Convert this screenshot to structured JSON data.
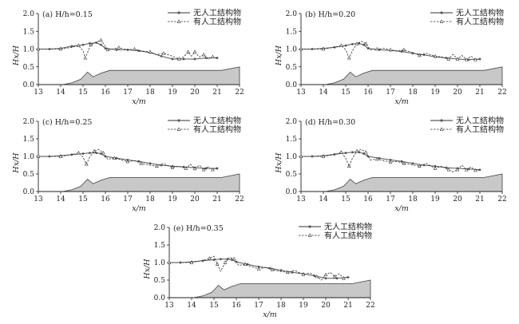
{
  "chart_data": [
    {
      "type": "line",
      "panel_label": "(a) H/h=0.15",
      "xlabel": "x/m",
      "ylabel": "Hx/H",
      "xlim": [
        13,
        22
      ],
      "ylim": [
        0,
        2.0
      ],
      "xticks": [
        "13",
        "14",
        "15",
        "16",
        "17",
        "18",
        "19",
        "20",
        "21",
        "22"
      ],
      "yticks": [
        "0.0",
        "0.5",
        "1.0",
        "1.5",
        "2.0"
      ],
      "legend_position": "top-right",
      "bathymetry_x": [
        14.1,
        14.5,
        14.9,
        15.05,
        15.2,
        15.45,
        15.8,
        16.2,
        21.2,
        22.0
      ],
      "bathymetry_y": [
        0.0,
        0.05,
        0.15,
        0.25,
        0.35,
        0.22,
        0.32,
        0.4,
        0.4,
        0.5
      ],
      "series": [
        {
          "name": "无人工结构物",
          "style": "solid-dot",
          "x": [
            13.0,
            13.5,
            14.0,
            14.5,
            15.0,
            15.3,
            15.6,
            15.8,
            16.0,
            16.5,
            17.0,
            17.5,
            18.0,
            18.5,
            19.0,
            19.5,
            20.0,
            20.5,
            21.0
          ],
          "y": [
            1.0,
            1.0,
            1.02,
            1.08,
            1.12,
            1.16,
            1.18,
            1.12,
            1.02,
            0.98,
            0.98,
            0.95,
            0.9,
            0.8,
            0.72,
            0.72,
            0.72,
            0.75,
            0.75
          ]
        },
        {
          "name": "有人工结构物",
          "style": "dashed-triangle",
          "x": [
            13.0,
            13.5,
            14.0,
            14.5,
            14.8,
            15.0,
            15.1,
            15.2,
            15.35,
            15.6,
            15.8,
            15.95,
            16.1,
            16.3,
            16.6,
            17.0,
            17.3,
            17.6,
            18.0,
            18.3,
            18.6,
            19.0,
            19.3,
            19.5,
            19.7,
            19.85,
            20.0,
            20.2,
            20.4,
            20.6,
            20.8,
            21.0
          ],
          "y": [
            1.0,
            1.0,
            1.0,
            1.05,
            1.1,
            0.95,
            0.75,
            0.9,
            1.12,
            1.2,
            1.25,
            1.12,
            0.98,
            1.0,
            1.04,
            0.98,
            1.0,
            0.95,
            0.92,
            0.84,
            0.88,
            0.8,
            0.72,
            0.78,
            0.92,
            0.8,
            0.92,
            0.78,
            0.84,
            0.72,
            0.78,
            0.75
          ]
        }
      ]
    },
    {
      "type": "line",
      "panel_label": "(b) H/h=0.20",
      "xlabel": "x/m",
      "ylabel": "Hx/H",
      "xlim": [
        13,
        22
      ],
      "ylim": [
        0,
        2.0
      ],
      "xticks": [
        "13",
        "14",
        "15",
        "16",
        "17",
        "18",
        "19",
        "20",
        "21",
        "22"
      ],
      "yticks": [
        "0.0",
        "0.5",
        "1.0",
        "1.5",
        "2.0"
      ],
      "legend_position": "top-right",
      "bathymetry_x": [
        14.1,
        14.5,
        14.9,
        15.05,
        15.2,
        15.45,
        15.8,
        16.2,
        21.2,
        22.0
      ],
      "bathymetry_y": [
        0.0,
        0.05,
        0.15,
        0.25,
        0.35,
        0.22,
        0.32,
        0.4,
        0.4,
        0.5
      ],
      "series": [
        {
          "name": "无人工结构物",
          "style": "solid-dot",
          "x": [
            13.0,
            13.5,
            14.0,
            14.5,
            15.0,
            15.3,
            15.6,
            15.8,
            16.0,
            16.5,
            17.0,
            17.5,
            18.0,
            18.5,
            19.0,
            19.5,
            20.0,
            20.5,
            21.0
          ],
          "y": [
            1.0,
            1.0,
            1.02,
            1.05,
            1.1,
            1.14,
            1.16,
            1.12,
            1.02,
            0.98,
            0.96,
            0.93,
            0.88,
            0.84,
            0.78,
            0.75,
            0.72,
            0.7,
            0.72
          ]
        },
        {
          "name": "有人工结构物",
          "style": "dashed-triangle",
          "x": [
            13.0,
            13.5,
            14.0,
            14.5,
            14.8,
            15.0,
            15.15,
            15.3,
            15.5,
            15.7,
            15.9,
            16.1,
            16.4,
            16.7,
            17.0,
            17.3,
            17.6,
            18.0,
            18.3,
            18.6,
            19.0,
            19.3,
            19.6,
            19.8,
            20.0,
            20.2,
            20.4,
            20.6,
            20.8,
            21.0
          ],
          "y": [
            1.0,
            1.0,
            1.0,
            1.05,
            1.1,
            0.98,
            0.75,
            0.95,
            1.15,
            1.22,
            1.15,
            0.98,
            1.0,
            1.02,
            0.98,
            0.95,
            0.98,
            0.9,
            0.82,
            0.88,
            0.8,
            0.78,
            0.72,
            0.85,
            0.72,
            0.82,
            0.7,
            0.8,
            0.7,
            0.72
          ]
        }
      ]
    },
    {
      "type": "line",
      "panel_label": "(c) H/h=0.25",
      "xlabel": "x/m",
      "ylabel": "Hx/H",
      "xlim": [
        13,
        22
      ],
      "ylim": [
        0,
        2.0
      ],
      "xticks": [
        "13",
        "14",
        "15",
        "16",
        "17",
        "18",
        "19",
        "20",
        "21",
        "22"
      ],
      "yticks": [
        "0.0",
        "0.5",
        "1.0",
        "1.5",
        "2.0"
      ],
      "legend_position": "top-right",
      "bathymetry_x": [
        14.1,
        14.5,
        14.9,
        15.05,
        15.2,
        15.45,
        15.8,
        16.2,
        21.2,
        22.0
      ],
      "bathymetry_y": [
        0.0,
        0.05,
        0.15,
        0.25,
        0.35,
        0.22,
        0.32,
        0.4,
        0.4,
        0.5
      ],
      "series": [
        {
          "name": "无人工结构物",
          "style": "solid-dot",
          "x": [
            13.0,
            13.5,
            14.0,
            14.5,
            15.0,
            15.3,
            15.6,
            15.8,
            16.0,
            16.5,
            17.0,
            17.5,
            18.0,
            18.5,
            19.0,
            19.5,
            20.0,
            20.5,
            21.0
          ],
          "y": [
            1.0,
            1.0,
            1.02,
            1.05,
            1.08,
            1.1,
            1.1,
            1.08,
            1.0,
            0.95,
            0.9,
            0.86,
            0.8,
            0.75,
            0.72,
            0.7,
            0.68,
            0.66,
            0.66
          ]
        },
        {
          "name": "有人工结构物",
          "style": "dashed-triangle",
          "x": [
            13.0,
            13.5,
            14.0,
            14.5,
            14.8,
            15.0,
            15.15,
            15.3,
            15.5,
            15.7,
            15.9,
            16.1,
            16.4,
            16.7,
            17.0,
            17.3,
            17.6,
            18.0,
            18.3,
            18.6,
            19.0,
            19.3,
            19.6,
            19.8,
            20.0,
            20.2,
            20.4,
            20.6,
            20.8,
            21.0
          ],
          "y": [
            1.0,
            1.0,
            1.0,
            1.05,
            1.1,
            0.98,
            0.78,
            0.98,
            1.15,
            1.2,
            1.1,
            0.92,
            0.95,
            0.9,
            0.85,
            0.88,
            0.8,
            0.75,
            0.72,
            0.8,
            0.68,
            0.72,
            0.66,
            0.78,
            0.65,
            0.75,
            0.62,
            0.7,
            0.62,
            0.66
          ]
        }
      ]
    },
    {
      "type": "line",
      "panel_label": "(d) H/h=0.30",
      "xlabel": "x/m",
      "ylabel": "Hx/H",
      "xlim": [
        13,
        22
      ],
      "ylim": [
        0,
        2.0
      ],
      "xticks": [
        "13",
        "14",
        "15",
        "16",
        "17",
        "18",
        "19",
        "20",
        "21",
        "22"
      ],
      "yticks": [
        "0.0",
        "0.5",
        "1.0",
        "1.5",
        "2.0"
      ],
      "legend_position": "top-right",
      "bathymetry_x": [
        14.1,
        14.5,
        14.9,
        15.05,
        15.2,
        15.45,
        15.8,
        16.2,
        21.2,
        22.0
      ],
      "bathymetry_y": [
        0.0,
        0.05,
        0.15,
        0.25,
        0.35,
        0.22,
        0.32,
        0.4,
        0.4,
        0.5
      ],
      "series": [
        {
          "name": "无人工结构物",
          "style": "solid-dot",
          "x": [
            13.0,
            13.5,
            14.0,
            14.5,
            15.0,
            15.3,
            15.6,
            15.8,
            16.0,
            16.5,
            17.0,
            17.5,
            18.0,
            18.5,
            19.0,
            19.5,
            20.0,
            20.5,
            21.0
          ],
          "y": [
            1.0,
            1.0,
            1.02,
            1.06,
            1.1,
            1.12,
            1.12,
            1.08,
            1.0,
            0.95,
            0.9,
            0.86,
            0.8,
            0.75,
            0.72,
            0.68,
            0.66,
            0.64,
            0.62
          ]
        },
        {
          "name": "有人工结构物",
          "style": "dashed-triangle",
          "x": [
            13.0,
            13.5,
            14.0,
            14.5,
            14.8,
            15.0,
            15.15,
            15.3,
            15.5,
            15.7,
            15.9,
            16.1,
            16.4,
            16.7,
            17.0,
            17.3,
            17.6,
            18.0,
            18.3,
            18.6,
            19.0,
            19.3,
            19.6,
            19.8,
            20.0,
            20.2,
            20.4,
            20.6,
            20.8,
            21.0
          ],
          "y": [
            1.0,
            1.0,
            1.0,
            1.05,
            1.12,
            0.95,
            0.72,
            0.95,
            1.15,
            1.2,
            1.12,
            0.9,
            0.92,
            0.88,
            0.84,
            0.86,
            0.8,
            0.76,
            0.72,
            0.8,
            0.66,
            0.72,
            0.62,
            0.56,
            0.62,
            0.75,
            0.62,
            0.7,
            0.6,
            0.62
          ]
        }
      ]
    },
    {
      "type": "line",
      "panel_label": "(e) H/h=0.35",
      "xlabel": "x/m",
      "ylabel": "Hx/H",
      "xlim": [
        13,
        22
      ],
      "ylim": [
        0,
        2.0
      ],
      "xticks": [
        "13",
        "14",
        "15",
        "16",
        "17",
        "18",
        "19",
        "20",
        "21",
        "22"
      ],
      "yticks": [
        "0.0",
        "0.5",
        "1.0",
        "1.5",
        "2.0"
      ],
      "legend_position": "top-right",
      "bathymetry_x": [
        14.1,
        14.5,
        14.9,
        15.05,
        15.2,
        15.45,
        15.8,
        16.2,
        21.2,
        22.0
      ],
      "bathymetry_y": [
        0.0,
        0.05,
        0.15,
        0.25,
        0.35,
        0.22,
        0.32,
        0.4,
        0.4,
        0.5
      ],
      "series": [
        {
          "name": "无人工结构物",
          "style": "solid-dot",
          "x": [
            13.0,
            13.5,
            14.0,
            14.5,
            15.0,
            15.3,
            15.6,
            15.8,
            16.0,
            16.5,
            17.0,
            17.5,
            18.0,
            18.5,
            19.0,
            19.5,
            20.0,
            20.5,
            21.0
          ],
          "y": [
            1.0,
            1.0,
            1.02,
            1.05,
            1.08,
            1.1,
            1.1,
            1.08,
            1.02,
            0.95,
            0.88,
            0.84,
            0.78,
            0.72,
            0.68,
            0.62,
            0.55,
            0.55,
            0.58
          ]
        },
        {
          "name": "有人工结构物",
          "style": "dashed-triangle",
          "x": [
            13.0,
            13.5,
            14.0,
            14.5,
            14.8,
            15.0,
            15.15,
            15.3,
            15.5,
            15.7,
            15.9,
            16.1,
            16.4,
            16.7,
            17.0,
            17.3,
            17.6,
            18.0,
            18.3,
            18.6,
            19.0,
            19.3,
            19.6,
            19.8,
            20.0,
            20.2,
            20.4,
            20.6,
            20.8,
            21.0
          ],
          "y": [
            1.0,
            1.0,
            1.0,
            1.06,
            1.12,
            1.18,
            0.95,
            0.75,
            1.0,
            1.15,
            1.1,
            0.92,
            0.95,
            0.88,
            0.82,
            0.86,
            0.8,
            0.74,
            0.72,
            0.78,
            0.66,
            0.7,
            0.6,
            0.5,
            0.65,
            0.72,
            0.6,
            0.68,
            0.55,
            0.6
          ]
        }
      ]
    }
  ]
}
